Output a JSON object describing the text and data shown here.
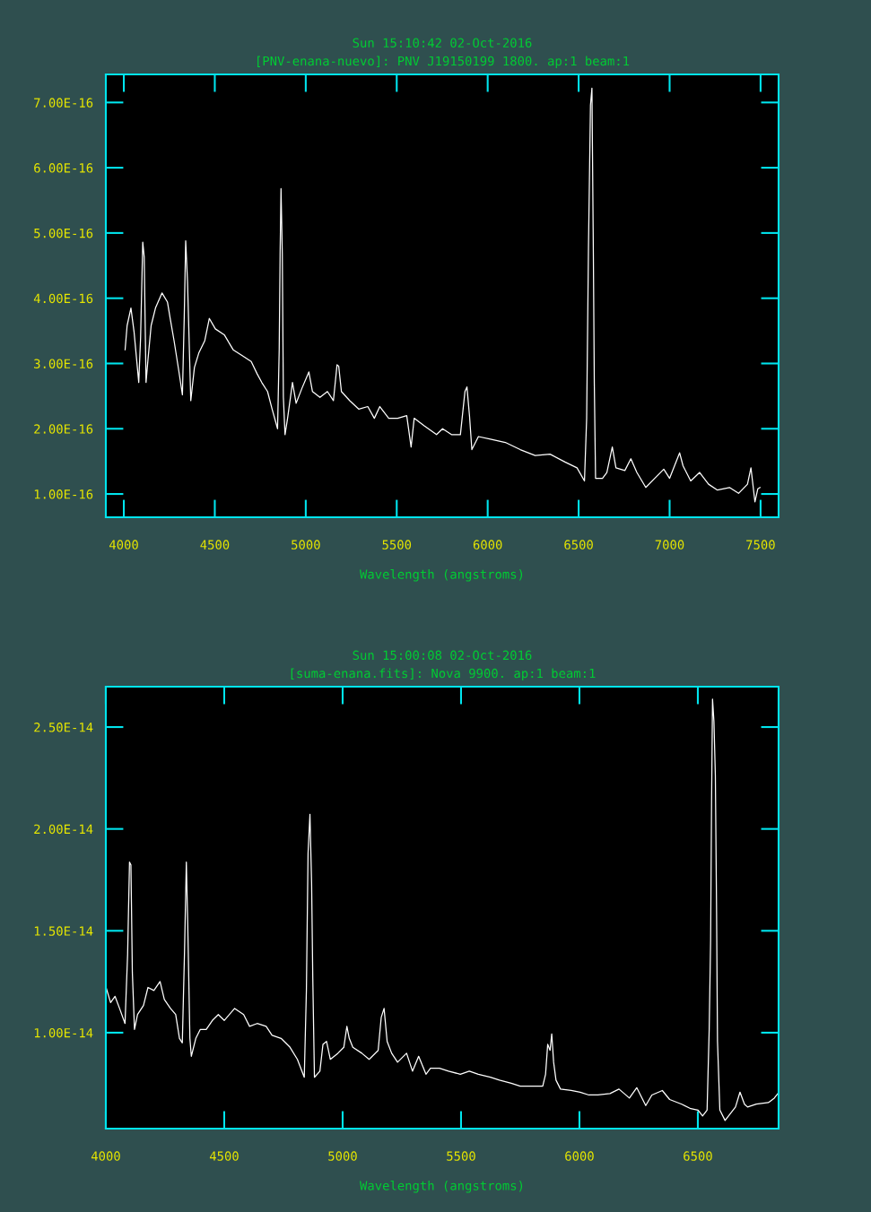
{
  "chart_data": [
    {
      "type": "line",
      "title": "Sun 15:10:42 02-Oct-2016",
      "subtitle": "[PNV-enana-nuevo]: PNV J19150199 1800. ap:1 beam:1",
      "xlabel": "Wavelength (angstroms)",
      "color": "#ffffff",
      "x": [
        4007,
        4018,
        4039,
        4056,
        4067,
        4082,
        4092,
        4104,
        4112,
        4122,
        4133,
        4150,
        4174,
        4210,
        4240,
        4256,
        4276,
        4302,
        4322,
        4332,
        4340,
        4350,
        4368,
        4388,
        4412,
        4445,
        4470,
        4503,
        4552,
        4601,
        4651,
        4700,
        4733,
        4758,
        4790,
        4815,
        4845,
        4854,
        4859,
        4864,
        4871,
        4877,
        4886,
        4900,
        4927,
        4947,
        4979,
        5017,
        5037,
        5078,
        5119,
        5152,
        5172,
        5181,
        5196,
        5242,
        5292,
        5341,
        5377,
        5407,
        5456,
        5505,
        5555,
        5579,
        5596,
        5653,
        5719,
        5752,
        5801,
        5850,
        5875,
        5886,
        5900,
        5913,
        5949,
        6015,
        6097,
        6179,
        6261,
        6343,
        6425,
        6491,
        6532,
        6544,
        6554,
        6565,
        6573,
        6581,
        6586,
        6593,
        6631,
        6655,
        6685,
        6705,
        6754,
        6787,
        6820,
        6869,
        6918,
        6968,
        7000,
        7055,
        7074,
        7116,
        7165,
        7214,
        7263,
        7329,
        7379,
        7428,
        7447,
        7469,
        7485,
        7497
      ],
      "values": [
        3.21e-16,
        3.58e-16,
        3.85e-16,
        3.49e-16,
        3.16e-16,
        2.71e-16,
        3.39e-16,
        4.86e-16,
        4.63e-16,
        2.71e-16,
        3.07e-16,
        3.58e-16,
        3.85e-16,
        4.08e-16,
        3.94e-16,
        3.67e-16,
        3.35e-16,
        2.89e-16,
        2.52e-16,
        3.71e-16,
        4.88e-16,
        4.26e-16,
        2.43e-16,
        2.94e-16,
        3.16e-16,
        3.35e-16,
        3.69e-16,
        3.53e-16,
        3.44e-16,
        3.21e-16,
        3.12e-16,
        3.03e-16,
        2.84e-16,
        2.71e-16,
        2.57e-16,
        2.3e-16,
        2e-16,
        3.21e-16,
        4.67e-16,
        5.68e-16,
        4.67e-16,
        2.48e-16,
        1.91e-16,
        2.16e-16,
        2.71e-16,
        2.39e-16,
        2.62e-16,
        2.87e-16,
        2.57e-16,
        2.48e-16,
        2.57e-16,
        2.43e-16,
        2.98e-16,
        2.96e-16,
        2.57e-16,
        2.43e-16,
        2.3e-16,
        2.34e-16,
        2.16e-16,
        2.34e-16,
        2.16e-16,
        2.16e-16,
        2.2e-16,
        1.72e-16,
        2.16e-16,
        2.04e-16,
        1.91e-16,
        2e-16,
        1.91e-16,
        1.91e-16,
        2.57e-16,
        2.64e-16,
        2.2e-16,
        1.68e-16,
        1.88e-16,
        1.84e-16,
        1.79e-16,
        1.68e-16,
        1.59e-16,
        1.61e-16,
        1.49e-16,
        1.4e-16,
        1.2e-16,
        2.16e-16,
        4.77e-16,
        6.96e-16,
        7.22e-16,
        4.63e-16,
        2.71e-16,
        1.24e-16,
        1.24e-16,
        1.33e-16,
        1.72e-16,
        1.4e-16,
        1.36e-16,
        1.54e-16,
        1.33e-16,
        1.1e-16,
        1.24e-16,
        1.38e-16,
        1.24e-16,
        1.63e-16,
        1.43e-16,
        1.2e-16,
        1.33e-16,
        1.15e-16,
        1.06e-16,
        1.1e-16,
        1.01e-16,
        1.15e-16,
        1.4e-16,
        8.8e-17,
        1.08e-16,
        1.1e-16
      ],
      "xlim": [
        3901,
        7599
      ],
      "ylim": [
        6.43e-17,
        7.43e-16
      ],
      "xticks": [
        4000,
        4500,
        5000,
        5500,
        6000,
        6500,
        7000,
        7500
      ],
      "yticks": [
        {
          "value": 1e-16,
          "label": "1.00E-16"
        },
        {
          "value": 2e-16,
          "label": "2.00E-16"
        },
        {
          "value": 3e-16,
          "label": "3.00E-16"
        },
        {
          "value": 4e-16,
          "label": "4.00E-16"
        },
        {
          "value": 5e-16,
          "label": "5.00E-16"
        },
        {
          "value": 6e-16,
          "label": "6.00E-16"
        },
        {
          "value": 7e-16,
          "label": "7.00E-16"
        }
      ]
    },
    {
      "type": "line",
      "title": "Sun 15:00:08 02-Oct-2016",
      "subtitle": "[suma-enana.fits]: Nova 9900. ap:1 beam:1",
      "xlabel": "Wavelength (angstroms)",
      "color": "#ffffff",
      "x": [
        4001,
        4020,
        4039,
        4058,
        4081,
        4092,
        4100,
        4106,
        4112,
        4121,
        4134,
        4159,
        4178,
        4203,
        4229,
        4247,
        4273,
        4295,
        4311,
        4323,
        4332,
        4340,
        4346,
        4355,
        4361,
        4380,
        4399,
        4424,
        4450,
        4475,
        4500,
        4544,
        4582,
        4607,
        4639,
        4677,
        4702,
        4740,
        4778,
        4809,
        4838,
        4847,
        4854,
        4862,
        4869,
        4874,
        4881,
        4904,
        4917,
        4932,
        4948,
        4980,
        5005,
        5018,
        5028,
        5043,
        5081,
        5112,
        5150,
        5163,
        5175,
        5188,
        5207,
        5232,
        5270,
        5295,
        5321,
        5352,
        5371,
        5409,
        5447,
        5497,
        5535,
        5573,
        5624,
        5662,
        5712,
        5750,
        5800,
        5845,
        5857,
        5866,
        5876,
        5883,
        5891,
        5901,
        5920,
        5965,
        6003,
        6040,
        6078,
        6129,
        6167,
        6211,
        6242,
        6280,
        6306,
        6350,
        6381,
        6432,
        6470,
        6501,
        6520,
        6539,
        6548,
        6554,
        6558,
        6562,
        6568,
        6574,
        6579,
        6583,
        6593,
        6615,
        6634,
        6659,
        6678,
        6697,
        6710,
        6747,
        6798,
        6823,
        6838
      ],
      "values": [
        1.222e-14,
        1.148e-14,
        1.178e-14,
        1.119e-14,
        1.045e-14,
        1.383e-14,
        1.837e-14,
        1.823e-14,
        1.295e-14,
        1.016e-14,
        1.089e-14,
        1.133e-14,
        1.222e-14,
        1.207e-14,
        1.251e-14,
        1.163e-14,
        1.119e-14,
        1.089e-14,
        9.72e-15,
        9.5e-15,
        1.383e-14,
        1.837e-14,
        1.529e-14,
        9.72e-15,
        8.84e-15,
        9.72e-15,
        1.016e-14,
        1.016e-14,
        1.06e-14,
        1.089e-14,
        1.06e-14,
        1.119e-14,
        1.089e-14,
        1.031e-14,
        1.045e-14,
        1.031e-14,
        9.87e-15,
        9.72e-15,
        9.28e-15,
        8.69e-15,
        7.81e-15,
        1.207e-14,
        1.881e-14,
        2.072e-14,
        1.735e-14,
        1.265e-14,
        7.81e-15,
        8.11e-15,
        9.43e-15,
        9.57e-15,
        8.69e-15,
        8.99e-15,
        9.28e-15,
        1.031e-14,
        9.72e-15,
        9.28e-15,
        8.99e-15,
        8.69e-15,
        9.13e-15,
        1.075e-14,
        1.119e-14,
        9.57e-15,
        8.99e-15,
        8.55e-15,
        8.99e-15,
        8.11e-15,
        8.84e-15,
        7.96e-15,
        8.25e-15,
        8.25e-15,
        8.11e-15,
        7.96e-15,
        8.11e-15,
        7.96e-15,
        7.81e-15,
        7.67e-15,
        7.52e-15,
        7.37e-15,
        7.37e-15,
        7.37e-15,
        7.96e-15,
        9.43e-15,
        9.13e-15,
        9.94e-15,
        8.55e-15,
        7.67e-15,
        7.23e-15,
        7.16e-15,
        7.08e-15,
        6.94e-15,
        6.94e-15,
        7.01e-15,
        7.23e-15,
        6.79e-15,
        7.3e-15,
        6.42e-15,
        6.94e-15,
        7.16e-15,
        6.72e-15,
        6.49e-15,
        6.27e-15,
        6.2e-15,
        5.91e-15,
        6.2e-15,
        1.016e-14,
        1.456e-14,
        2.131e-14,
        2.637e-14,
        2.527e-14,
        2.263e-14,
        1.617e-14,
        9.57e-15,
        6.2e-15,
        5.69e-15,
        5.98e-15,
        6.35e-15,
        7.08e-15,
        6.49e-15,
        6.35e-15,
        6.49e-15,
        6.57e-15,
        6.79e-15,
        7.01e-15
      ],
      "xlim": [
        4000,
        6841
      ],
      "ylim": [
        5.29e-15,
        2.698e-14
      ],
      "xticks": [
        4000,
        4500,
        5000,
        5500,
        6000,
        6500
      ],
      "yticks": [
        {
          "value": 1e-14,
          "label": "1.00E-14"
        },
        {
          "value": 1.5e-14,
          "label": "1.50E-14"
        },
        {
          "value": 2e-14,
          "label": "2.00E-14"
        },
        {
          "value": 2.5e-14,
          "label": "2.50E-14"
        }
      ]
    }
  ]
}
